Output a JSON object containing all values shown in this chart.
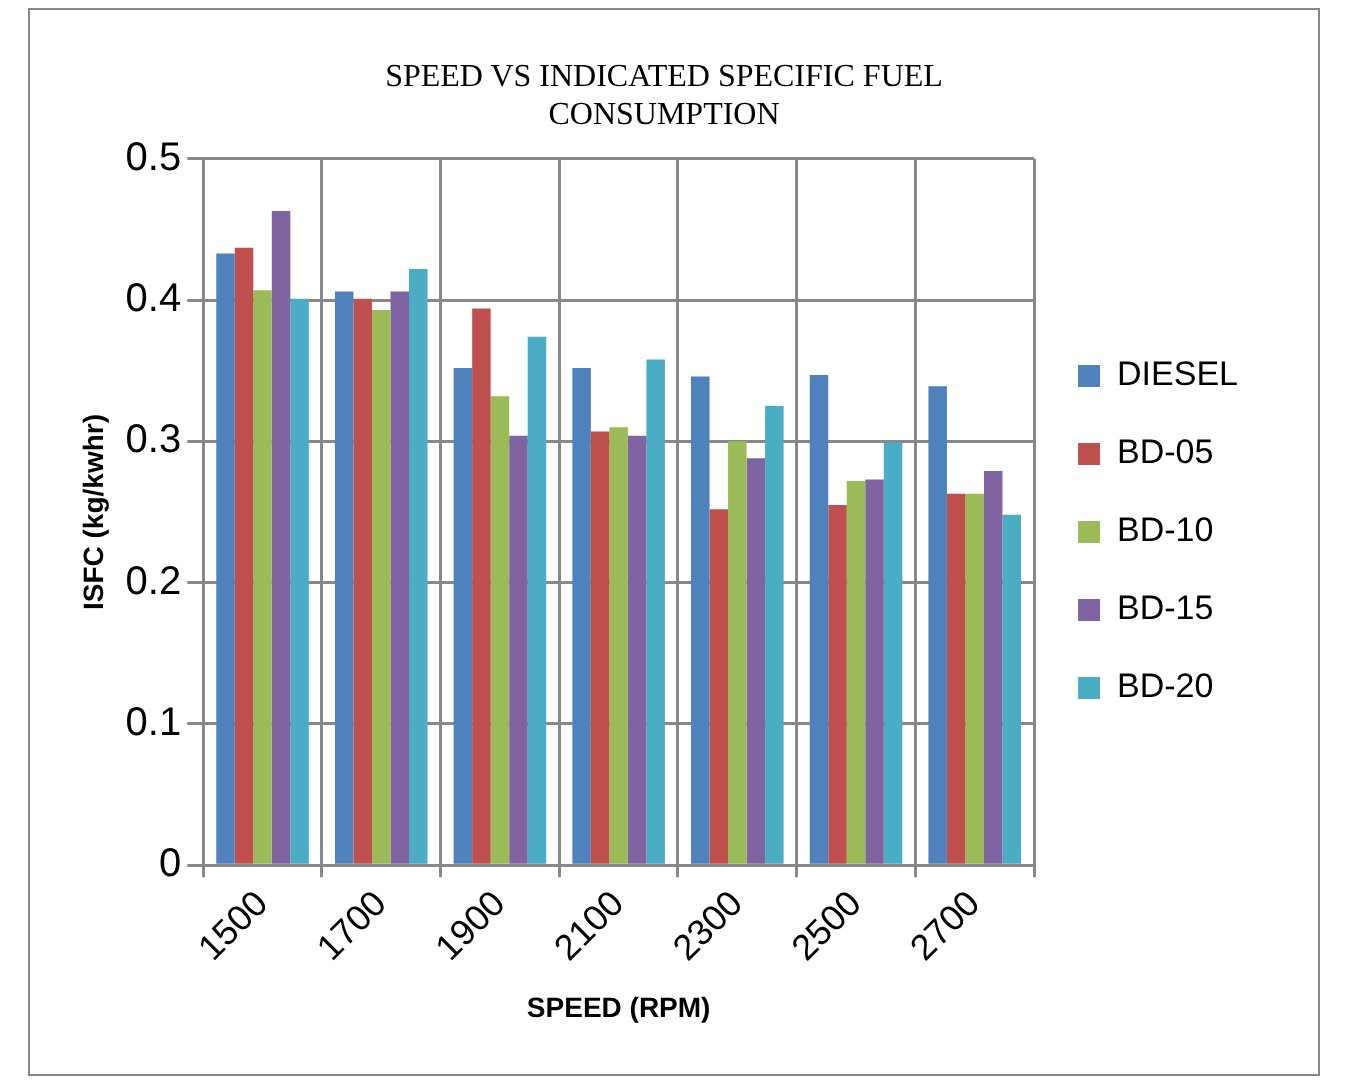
{
  "chart_data": {
    "type": "bar",
    "title": "SPEED VS INDICATED SPECIFIC FUEL CONSUMPTION",
    "xlabel": "SPEED (RPM)",
    "ylabel": "ISFC (kg/kwhr)",
    "categories": [
      "1500",
      "1700",
      "1900",
      "2100",
      "2300",
      "2500",
      "2700"
    ],
    "series": [
      {
        "name": "DIESEL",
        "color": "#4f81bd",
        "values": [
          0.433,
          0.406,
          0.352,
          0.352,
          0.346,
          0.347,
          0.339
        ]
      },
      {
        "name": "BD-05",
        "color": "#c0504d",
        "values": [
          0.437,
          0.401,
          0.394,
          0.307,
          0.252,
          0.255,
          0.263
        ]
      },
      {
        "name": "BD-10",
        "color": "#9bbb59",
        "values": [
          0.407,
          0.393,
          0.332,
          0.31,
          0.3,
          0.272,
          0.263
        ]
      },
      {
        "name": "BD-15",
        "color": "#8064a2",
        "values": [
          0.463,
          0.406,
          0.304,
          0.304,
          0.288,
          0.273,
          0.279
        ]
      },
      {
        "name": "BD-20",
        "color": "#4bacc6",
        "values": [
          0.401,
          0.422,
          0.374,
          0.358,
          0.325,
          0.299,
          0.248
        ]
      }
    ],
    "ylim": [
      0,
      0.5
    ],
    "yticks": [
      0,
      0.1,
      0.2,
      0.3,
      0.4,
      0.5
    ],
    "grid": true,
    "legend": "right"
  }
}
